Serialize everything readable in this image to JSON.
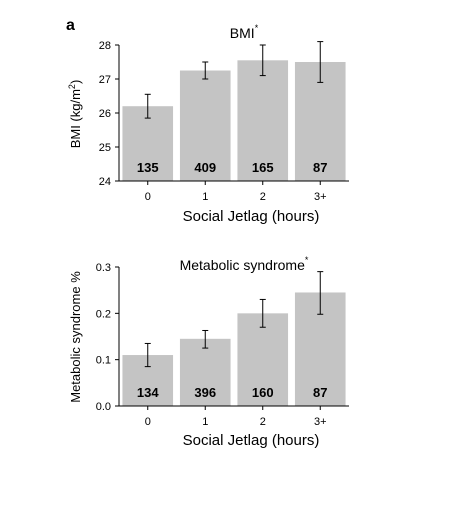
{
  "panel_label": "a",
  "chart_data": [
    {
      "type": "bar",
      "title": "BMI",
      "title_superscript": "*",
      "categories": [
        "0",
        "1",
        "2",
        "3+"
      ],
      "values": [
        26.2,
        27.25,
        27.55,
        27.5
      ],
      "error_low": [
        25.85,
        27.0,
        27.1,
        26.9
      ],
      "error_high": [
        26.55,
        27.5,
        28.0,
        28.1
      ],
      "bar_labels": [
        "135",
        "409",
        "165",
        "87"
      ],
      "xlabel": "Social Jetlag (hours)",
      "ylabel_parts": [
        "BMI (kg/m",
        "2",
        ")"
      ],
      "ylim": [
        24,
        28
      ],
      "yticks": [
        "24",
        "25",
        "26",
        "27",
        "28"
      ],
      "bar_color": "#c4c4c4",
      "grid": false
    },
    {
      "type": "bar",
      "title": "Metabolic syndrome",
      "title_superscript": "*",
      "categories": [
        "0",
        "1",
        "2",
        "3+"
      ],
      "values": [
        0.11,
        0.145,
        0.2,
        0.245
      ],
      "error_low": [
        0.085,
        0.125,
        0.17,
        0.198
      ],
      "error_high": [
        0.135,
        0.163,
        0.23,
        0.29
      ],
      "bar_labels": [
        "134",
        "396",
        "160",
        "87"
      ],
      "xlabel": "Social Jetlag (hours)",
      "ylabel": "Metabolic syndrome %",
      "ylim": [
        0,
        0.3
      ],
      "yticks": [
        "0.0",
        "0.1",
        "0.2",
        "0.3"
      ],
      "bar_color": "#c4c4c4",
      "grid": false
    }
  ]
}
